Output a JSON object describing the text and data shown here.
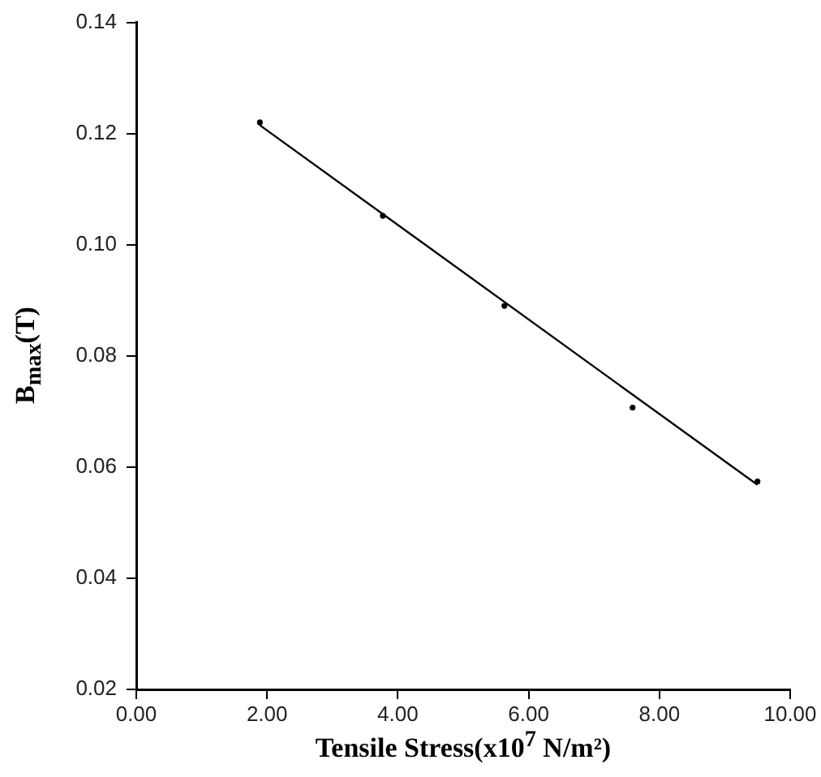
{
  "chart_data": {
    "type": "scatter",
    "xlabel": "Tensile Stress(x10$^{7}$ N/m²)",
    "ylabel": "B$_{max}$(T)",
    "xlim": [
      0,
      10
    ],
    "ylim": [
      0.02,
      0.14
    ],
    "xticks": [
      {
        "value": 0,
        "label": "0.00"
      },
      {
        "value": 2,
        "label": "2.00"
      },
      {
        "value": 4,
        "label": "4.00"
      },
      {
        "value": 6,
        "label": "6.00"
      },
      {
        "value": 8,
        "label": "8.00"
      },
      {
        "value": 10,
        "label": "10.00"
      }
    ],
    "yticks": [
      0.02,
      0.04,
      0.06,
      0.08,
      {
        "value": 0.1,
        "label": "0.10"
      },
      0.12,
      0.14
    ],
    "grid": false,
    "legend": false,
    "marker": "circle",
    "series": [
      {
        "type": "scatter",
        "color": "#000000",
        "x": [
          1.89,
          3.77,
          5.63,
          7.59,
          9.5
        ],
        "values": [
          0.122,
          0.1052,
          0.089,
          0.0707,
          0.0574
        ]
      },
      {
        "type": "line",
        "color": "#000000",
        "line_style": "solid",
        "marker": "none",
        "x": [
          1.89,
          9.5
        ],
        "values": [
          0.1215,
          0.0568
        ]
      }
    ]
  }
}
